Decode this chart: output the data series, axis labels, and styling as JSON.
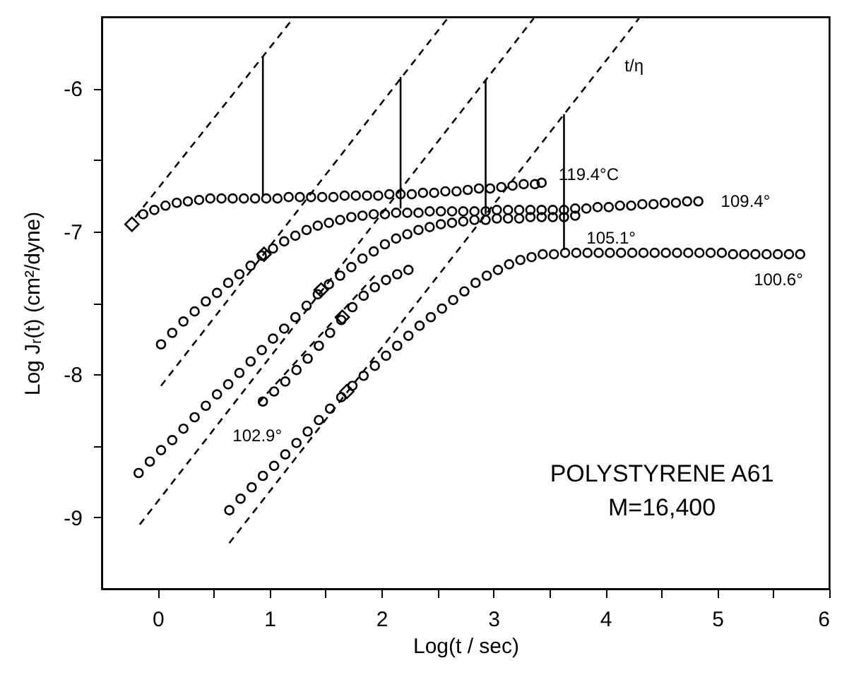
{
  "chart_data": {
    "type": "scatter",
    "xlabel": "Log(t / sec)",
    "ylabel": "Log Jᵣ(t) (cm²/dyne)",
    "marker": "circle",
    "xlim": [
      -0.5,
      6
    ],
    "ylim": [
      -9.5,
      -5.5
    ],
    "xticks": [
      0,
      {
        "value": 0.5,
        "label": null
      },
      1,
      {
        "value": 1.5,
        "label": null
      },
      2,
      {
        "value": 2.5,
        "label": null
      },
      3,
      {
        "value": 3.5,
        "label": null
      },
      4,
      {
        "value": 4.5,
        "label": null
      },
      5,
      {
        "value": 5.5,
        "label": null
      },
      6
    ],
    "yticks": [
      -6,
      {
        "value": -6.5,
        "label": null
      },
      -7,
      {
        "value": -7.5,
        "label": null
      },
      -8,
      {
        "value": -8.5,
        "label": null
      },
      -9
    ],
    "grid": false,
    "series": [
      {
        "color": "#000000",
        "x": [
          -0.13,
          -0.03,
          0.07,
          0.17,
          0.27,
          0.37,
          0.47,
          0.57,
          0.67,
          0.77,
          0.87,
          0.97,
          1.07,
          1.17,
          1.27,
          1.37,
          1.47,
          1.57,
          1.67,
          1.77,
          1.87,
          1.97,
          2.07,
          2.17,
          2.27,
          2.37,
          2.47,
          2.57,
          2.67,
          2.77,
          2.87,
          2.97,
          3.07,
          3.17,
          3.27,
          3.37,
          3.43
        ],
        "values": [
          -6.88,
          -6.85,
          -6.82,
          -6.8,
          -6.79,
          -6.78,
          -6.77,
          -6.77,
          -6.77,
          -6.77,
          -6.77,
          -6.77,
          -6.77,
          -6.76,
          -6.76,
          -6.76,
          -6.76,
          -6.76,
          -6.75,
          -6.75,
          -6.75,
          -6.75,
          -6.74,
          -6.74,
          -6.74,
          -6.73,
          -6.73,
          -6.72,
          -6.72,
          -6.71,
          -6.7,
          -6.7,
          -6.69,
          -6.68,
          -6.67,
          -6.67,
          -6.66
        ]
      },
      {
        "color": "#000000",
        "x": [
          0.03,
          0.13,
          0.23,
          0.33,
          0.43,
          0.53,
          0.63,
          0.73,
          0.83,
          0.93,
          1.03,
          1.13,
          1.23,
          1.33,
          1.43,
          1.53,
          1.63,
          1.73,
          1.83,
          1.93,
          2.03,
          2.13,
          2.23,
          2.33,
          2.43,
          2.53,
          2.63,
          2.73,
          2.83,
          2.93,
          3.03,
          3.13,
          3.23,
          3.33,
          3.43,
          3.53,
          3.63,
          3.73,
          3.83,
          3.93,
          4.03,
          4.13,
          4.23,
          4.33,
          4.43,
          4.53,
          4.63,
          4.73,
          4.83
        ],
        "values": [
          -7.79,
          -7.71,
          -7.63,
          -7.56,
          -7.49,
          -7.43,
          -7.36,
          -7.3,
          -7.24,
          -7.17,
          -7.12,
          -7.07,
          -7.03,
          -6.99,
          -6.96,
          -6.94,
          -6.92,
          -6.9,
          -6.89,
          -6.88,
          -6.88,
          -6.87,
          -6.87,
          -6.87,
          -6.86,
          -6.86,
          -6.86,
          -6.86,
          -6.86,
          -6.86,
          -6.85,
          -6.85,
          -6.85,
          -6.85,
          -6.85,
          -6.85,
          -6.85,
          -6.84,
          -6.84,
          -6.83,
          -6.83,
          -6.82,
          -6.82,
          -6.81,
          -6.81,
          -6.8,
          -6.8,
          -6.79,
          -6.79
        ]
      },
      {
        "color": "#000000",
        "x": [
          -0.17,
          -0.07,
          0.03,
          0.13,
          0.23,
          0.33,
          0.43,
          0.53,
          0.63,
          0.73,
          0.83,
          0.93,
          1.03,
          1.13,
          1.23,
          1.33,
          1.43,
          1.53,
          1.63,
          1.73,
          1.83,
          1.93,
          2.03,
          2.13,
          2.23,
          2.33,
          2.43,
          2.53,
          2.63,
          2.73,
          2.83,
          2.93,
          3.03,
          3.13,
          3.23,
          3.33,
          3.43,
          3.53,
          3.63,
          3.73
        ],
        "values": [
          -8.69,
          -8.61,
          -8.53,
          -8.46,
          -8.38,
          -8.3,
          -8.22,
          -8.14,
          -8.07,
          -7.99,
          -7.91,
          -7.83,
          -7.75,
          -7.68,
          -7.6,
          -7.52,
          -7.44,
          -7.37,
          -7.31,
          -7.25,
          -7.19,
          -7.14,
          -7.09,
          -7.05,
          -7.02,
          -6.99,
          -6.97,
          -6.95,
          -6.94,
          -6.93,
          -6.92,
          -6.92,
          -6.91,
          -6.91,
          -6.91,
          -6.9,
          -6.9,
          -6.9,
          -6.9,
          -6.89
        ]
      },
      {
        "color": "#000000",
        "x": [
          0.94,
          1.04,
          1.14,
          1.24,
          1.34,
          1.44,
          1.54,
          1.64,
          1.74,
          1.84,
          1.94,
          2.04,
          2.14,
          2.24
        ],
        "values": [
          -8.19,
          -8.12,
          -8.05,
          -7.97,
          -7.89,
          -7.8,
          -7.71,
          -7.62,
          -7.53,
          -7.45,
          -7.39,
          -7.34,
          -7.3,
          -7.27
        ]
      },
      {
        "color": "#000000",
        "x": [
          0.64,
          0.74,
          0.84,
          0.94,
          1.04,
          1.14,
          1.24,
          1.34,
          1.44,
          1.54,
          1.64,
          1.74,
          1.84,
          1.94,
          2.04,
          2.14,
          2.24,
          2.34,
          2.44,
          2.54,
          2.64,
          2.74,
          2.84,
          2.94,
          3.04,
          3.14,
          3.24,
          3.34,
          3.44,
          3.54,
          3.64,
          3.74,
          3.84,
          3.94,
          4.04,
          4.14,
          4.24,
          4.34,
          4.44,
          4.54,
          4.64,
          4.74,
          4.84,
          4.94,
          5.04,
          5.14,
          5.24,
          5.34,
          5.44,
          5.54,
          5.64,
          5.74
        ],
        "values": [
          -8.95,
          -8.87,
          -8.79,
          -8.71,
          -8.64,
          -8.56,
          -8.48,
          -8.4,
          -8.32,
          -8.24,
          -8.16,
          -8.08,
          -8.01,
          -7.94,
          -7.87,
          -7.8,
          -7.73,
          -7.66,
          -7.6,
          -7.54,
          -7.48,
          -7.42,
          -7.36,
          -7.31,
          -7.27,
          -7.23,
          -7.2,
          -7.18,
          -7.16,
          -7.16,
          -7.15,
          -7.15,
          -7.15,
          -7.15,
          -7.15,
          -7.15,
          -7.15,
          -7.15,
          -7.15,
          -7.15,
          -7.15,
          -7.15,
          -7.15,
          -7.15,
          -7.15,
          -7.16,
          -7.16,
          -7.16,
          -7.16,
          -7.16,
          -7.16,
          -7.16
        ]
      },
      {
        "color": "#000000",
        "marker": "diamond",
        "x": [
          -0.23,
          0.95,
          1.46,
          1.65,
          1.69
        ],
        "values": [
          -6.95,
          -7.16,
          -7.41,
          -7.6,
          -8.12
        ]
      },
      {
        "type": "line",
        "color": "#000000",
        "marker": "none",
        "line_style": "dashed",
        "x": [
          -0.2,
          1.2
        ],
        "values": [
          -6.9,
          -5.52
        ]
      },
      {
        "type": "line",
        "color": "#000000",
        "marker": "none",
        "line_style": "dashed",
        "x": [
          0.03,
          2.59
        ],
        "values": [
          -8.08,
          -5.51
        ]
      },
      {
        "type": "line",
        "color": "#000000",
        "marker": "none",
        "line_style": "dashed",
        "x": [
          -0.16,
          3.36
        ],
        "values": [
          -9.05,
          -5.51
        ]
      },
      {
        "type": "line",
        "color": "#000000",
        "marker": "none",
        "line_style": "dashed",
        "x": [
          0.64,
          4.3
        ],
        "values": [
          -9.18,
          -5.51
        ]
      },
      {
        "type": "line",
        "color": "#000000",
        "marker": "none",
        "line_style": "dashed",
        "x": [
          0.9,
          1.95
        ],
        "values": [
          -8.2,
          -7.3
        ]
      },
      {
        "type": "line",
        "color": "#000000",
        "marker": "none",
        "line_style": "solid",
        "x": [
          0.94,
          0.94
        ],
        "values": [
          -5.78,
          -6.75
        ]
      },
      {
        "type": "line",
        "color": "#000000",
        "marker": "none",
        "line_style": "solid",
        "x": [
          2.17,
          2.17
        ],
        "values": [
          -5.92,
          -6.84
        ]
      },
      {
        "type": "line",
        "color": "#000000",
        "marker": "none",
        "line_style": "solid",
        "x": [
          2.93,
          2.93
        ],
        "values": [
          -5.94,
          -6.88
        ]
      },
      {
        "type": "line",
        "color": "#000000",
        "marker": "none",
        "line_style": "solid",
        "x": [
          3.63,
          3.63
        ],
        "values": [
          -6.18,
          -7.13
        ]
      }
    ],
    "annotations": [
      {
        "text": "119.4°C",
        "x": 3.43,
        "y": -6.66
      },
      {
        "text": "109.4°",
        "x": 4.83,
        "y": -6.79
      },
      {
        "text": "105.1°",
        "x": 3.73,
        "y": -6.89
      },
      {
        "text": "100.6°",
        "x": 5.74,
        "y": -7.16
      },
      {
        "text": "102.9°",
        "x": 0.94,
        "y": -8.19
      },
      {
        "text": "t/η",
        "x": 3.97,
        "y": -5.84
      },
      "POLYSTYRENE A61",
      "M=16,400"
    ]
  }
}
